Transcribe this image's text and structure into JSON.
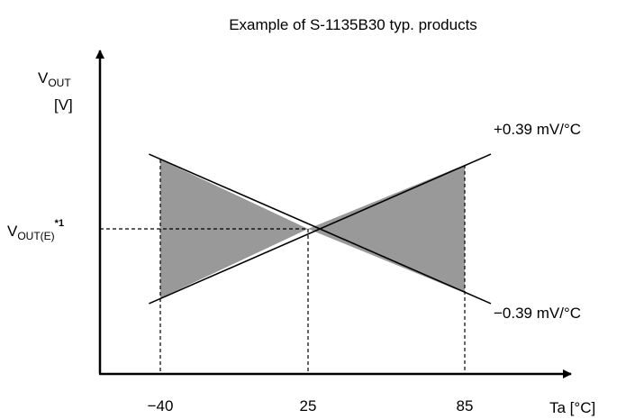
{
  "chart_data": {
    "type": "line",
    "title": "Example of S-1135B30 typ. products",
    "ylabel": {
      "main": "V",
      "sub": "OUT",
      "unit": "[V]"
    },
    "xlabel": "Ta [°C]",
    "ref_label": {
      "main": "V",
      "sub": "OUT(E)",
      "sup": "*1"
    },
    "x_ticks": [
      {
        "value": -40,
        "label": "−40"
      },
      {
        "value": 25,
        "label": "25"
      },
      {
        "value": 85,
        "label": "85"
      }
    ],
    "pivot": {
      "x": 25,
      "label": "V_OUT(E)"
    },
    "series": [
      {
        "name": "+0.39 mV/°C",
        "label": "+0.39 mV/°C",
        "slope_mV_per_C": 0.39,
        "x": [
          -45,
          95
        ]
      },
      {
        "name": "−0.39 mV/°C",
        "label": "−0.39 mV/°C",
        "slope_mV_per_C": -0.39,
        "x": [
          -45,
          95
        ]
      }
    ],
    "shaded_range": [
      -40,
      85
    ],
    "colors": {
      "fill": "#999999",
      "line": "#000000"
    }
  }
}
